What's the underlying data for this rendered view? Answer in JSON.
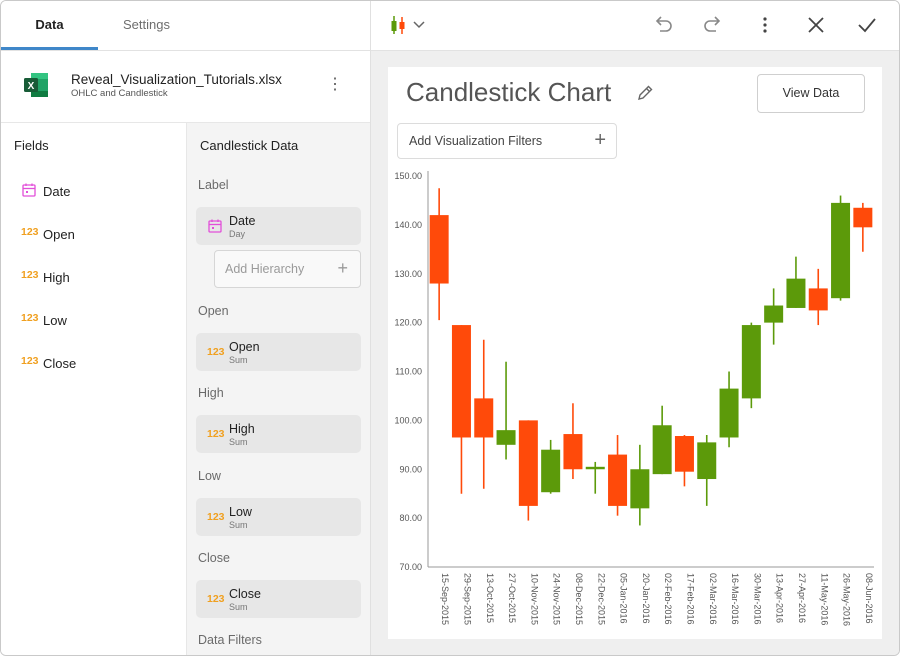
{
  "tabs": {
    "data": "Data",
    "settings": "Settings"
  },
  "file": {
    "name": "Reveal_Visualization_Tutorials.xlsx",
    "subtitle": "OHLC and Candlestick",
    "icon": "excel-icon",
    "more": "⋮"
  },
  "fields": {
    "title": "Fields",
    "items": [
      {
        "icon": "calendar-icon",
        "label": "Date"
      },
      {
        "icon": "123",
        "label": "Open"
      },
      {
        "icon": "123",
        "label": "High"
      },
      {
        "icon": "123",
        "label": "Low"
      },
      {
        "icon": "123",
        "label": "Close"
      }
    ]
  },
  "candlestick": {
    "title": "Candlestick Data",
    "label_section": "Label",
    "label_field": {
      "name": "Date",
      "sub": "Day"
    },
    "add_hierarchy": "Add Hierarchy",
    "open_section": "Open",
    "open_field": {
      "icon": "123",
      "name": "Open",
      "sub": "Sum"
    },
    "high_section": "High",
    "high_field": {
      "icon": "123",
      "name": "High",
      "sub": "Sum"
    },
    "low_section": "Low",
    "low_field": {
      "icon": "123",
      "name": "Low",
      "sub": "Sum"
    },
    "close_section": "Close",
    "close_field": {
      "icon": "123",
      "name": "Close",
      "sub": "Sum"
    },
    "data_filters": "Data Filters"
  },
  "toolbar": {
    "icons": [
      "candlestick-type-icon",
      "undo-icon",
      "redo-icon",
      "more-icon",
      "close-icon",
      "check-icon"
    ]
  },
  "card": {
    "title": "Candlestick Chart",
    "view_data": "View Data",
    "filters": "Add Visualization Filters",
    "plus": "+"
  },
  "colors": {
    "up": "#5c9a0a",
    "down": "#ff4a0a",
    "accent": "#3f87c9",
    "calendar": "#e24fd9",
    "numeric": "#f0a020"
  },
  "chart_data": {
    "type": "candlestick",
    "title": "",
    "ylim": [
      70,
      150
    ],
    "yticks": [
      "70.00",
      "80.00",
      "90.00",
      "100.00",
      "110.00",
      "120.00",
      "130.00",
      "140.00",
      "150.00"
    ],
    "categories": [
      "15-Sep-2015",
      "29-Sep-2015",
      "13-Oct-2015",
      "27-Oct-2015",
      "10-Nov-2015",
      "24-Nov-2015",
      "08-Dec-2015",
      "22-Dec-2015",
      "05-Jan-2016",
      "20-Jan-2016",
      "02-Feb-2016",
      "17-Feb-2016",
      "02-Mar-2016",
      "16-Mar-2016",
      "30-Mar-2016",
      "13-Apr-2016",
      "27-Apr-2016",
      "11-May-2016",
      "26-May-2016",
      "08-Jun-2016"
    ],
    "open": [
      142.0,
      119.5,
      104.5,
      95.0,
      100.0,
      85.3,
      97.2,
      90.0,
      93.0,
      82.0,
      89.0,
      96.8,
      88.0,
      96.5,
      104.5,
      120.0,
      123.0,
      127.0,
      125.0,
      143.5
    ],
    "high": [
      147.5,
      119.5,
      116.5,
      112.0,
      100.0,
      96.0,
      103.5,
      91.5,
      97.0,
      95.0,
      103.0,
      97.0,
      97.0,
      110.0,
      120.0,
      127.0,
      133.5,
      131.0,
      146.0,
      144.5
    ],
    "low": [
      120.5,
      85.0,
      86.0,
      92.0,
      79.5,
      85.0,
      88.0,
      85.0,
      80.5,
      78.5,
      89.0,
      86.5,
      82.5,
      94.5,
      102.5,
      115.5,
      123.0,
      119.5,
      124.5,
      134.5
    ],
    "close": [
      128.0,
      96.5,
      96.5,
      98.0,
      82.5,
      94.0,
      90.0,
      90.5,
      82.5,
      90.0,
      99.0,
      89.5,
      95.5,
      106.5,
      119.5,
      123.5,
      129.0,
      122.5,
      144.5,
      139.5
    ]
  }
}
